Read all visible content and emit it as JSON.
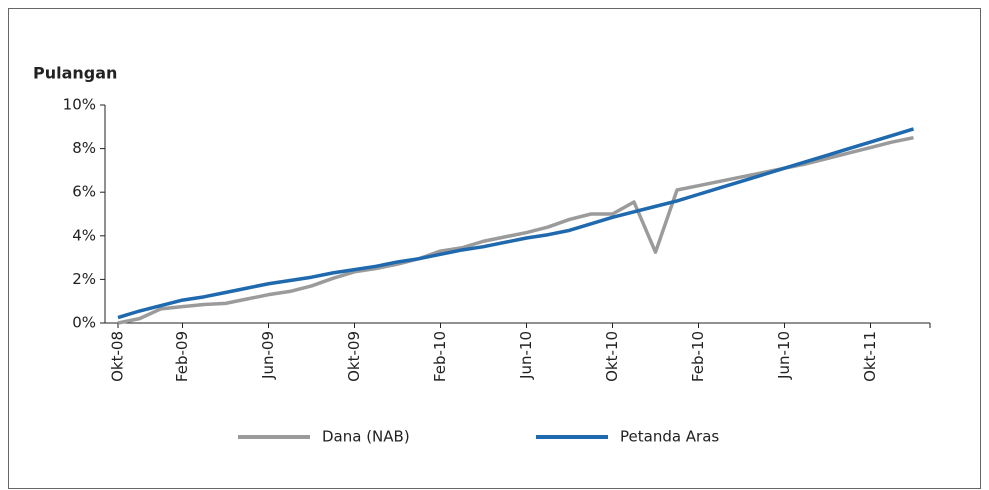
{
  "chart_data": {
    "type": "line",
    "title": "Pulangan",
    "categories": [
      "Okt-08",
      null,
      null,
      "Feb-09",
      null,
      null,
      null,
      "Jun-09",
      null,
      null,
      null,
      "Okt-09",
      null,
      null,
      null,
      "Feb-10",
      null,
      null,
      null,
      "Jun-10",
      null,
      null,
      null,
      "Okt-10",
      null,
      null,
      null,
      "Feb-10",
      null,
      null,
      null,
      "Jun-10",
      null,
      null,
      null,
      "Okt-11",
      null,
      null
    ],
    "series": [
      {
        "name": "Dana (NAB)",
        "color": "#9b9b9b",
        "values": [
          0,
          0.2,
          0.65,
          0.75,
          0.85,
          0.9,
          1.1,
          1.3,
          1.45,
          1.7,
          2.05,
          2.35,
          2.5,
          2.7,
          2.95,
          3.3,
          3.45,
          3.75,
          3.95,
          4.15,
          4.4,
          4.75,
          5.0,
          5.0,
          5.55,
          3.25,
          6.1,
          6.3,
          6.5,
          6.7,
          6.9,
          7.1,
          7.3,
          7.55,
          7.8,
          8.05,
          8.3,
          8.5
        ]
      },
      {
        "name": "Petanda Aras",
        "color": "#1f69ae",
        "values": [
          0.25,
          0.55,
          0.8,
          1.05,
          1.2,
          1.4,
          1.6,
          1.8,
          1.95,
          2.1,
          2.3,
          2.45,
          2.6,
          2.8,
          2.95,
          3.15,
          3.35,
          3.5,
          3.7,
          3.9,
          4.05,
          4.25,
          4.55,
          4.85,
          5.1,
          5.35,
          5.6,
          5.9,
          6.2,
          6.5,
          6.8,
          7.1,
          7.4,
          7.7,
          8.0,
          8.3,
          8.6,
          8.9
        ]
      }
    ],
    "ylim": [
      0,
      10
    ],
    "yticks": [
      {
        "value": 0,
        "label": "0%"
      },
      {
        "value": 2,
        "label": "2%"
      },
      {
        "value": 4,
        "label": "4%"
      },
      {
        "value": 6,
        "label": "6%"
      },
      {
        "value": 8,
        "label": "8%"
      },
      {
        "value": 10,
        "label": "10%"
      }
    ],
    "legend": "bottom"
  }
}
